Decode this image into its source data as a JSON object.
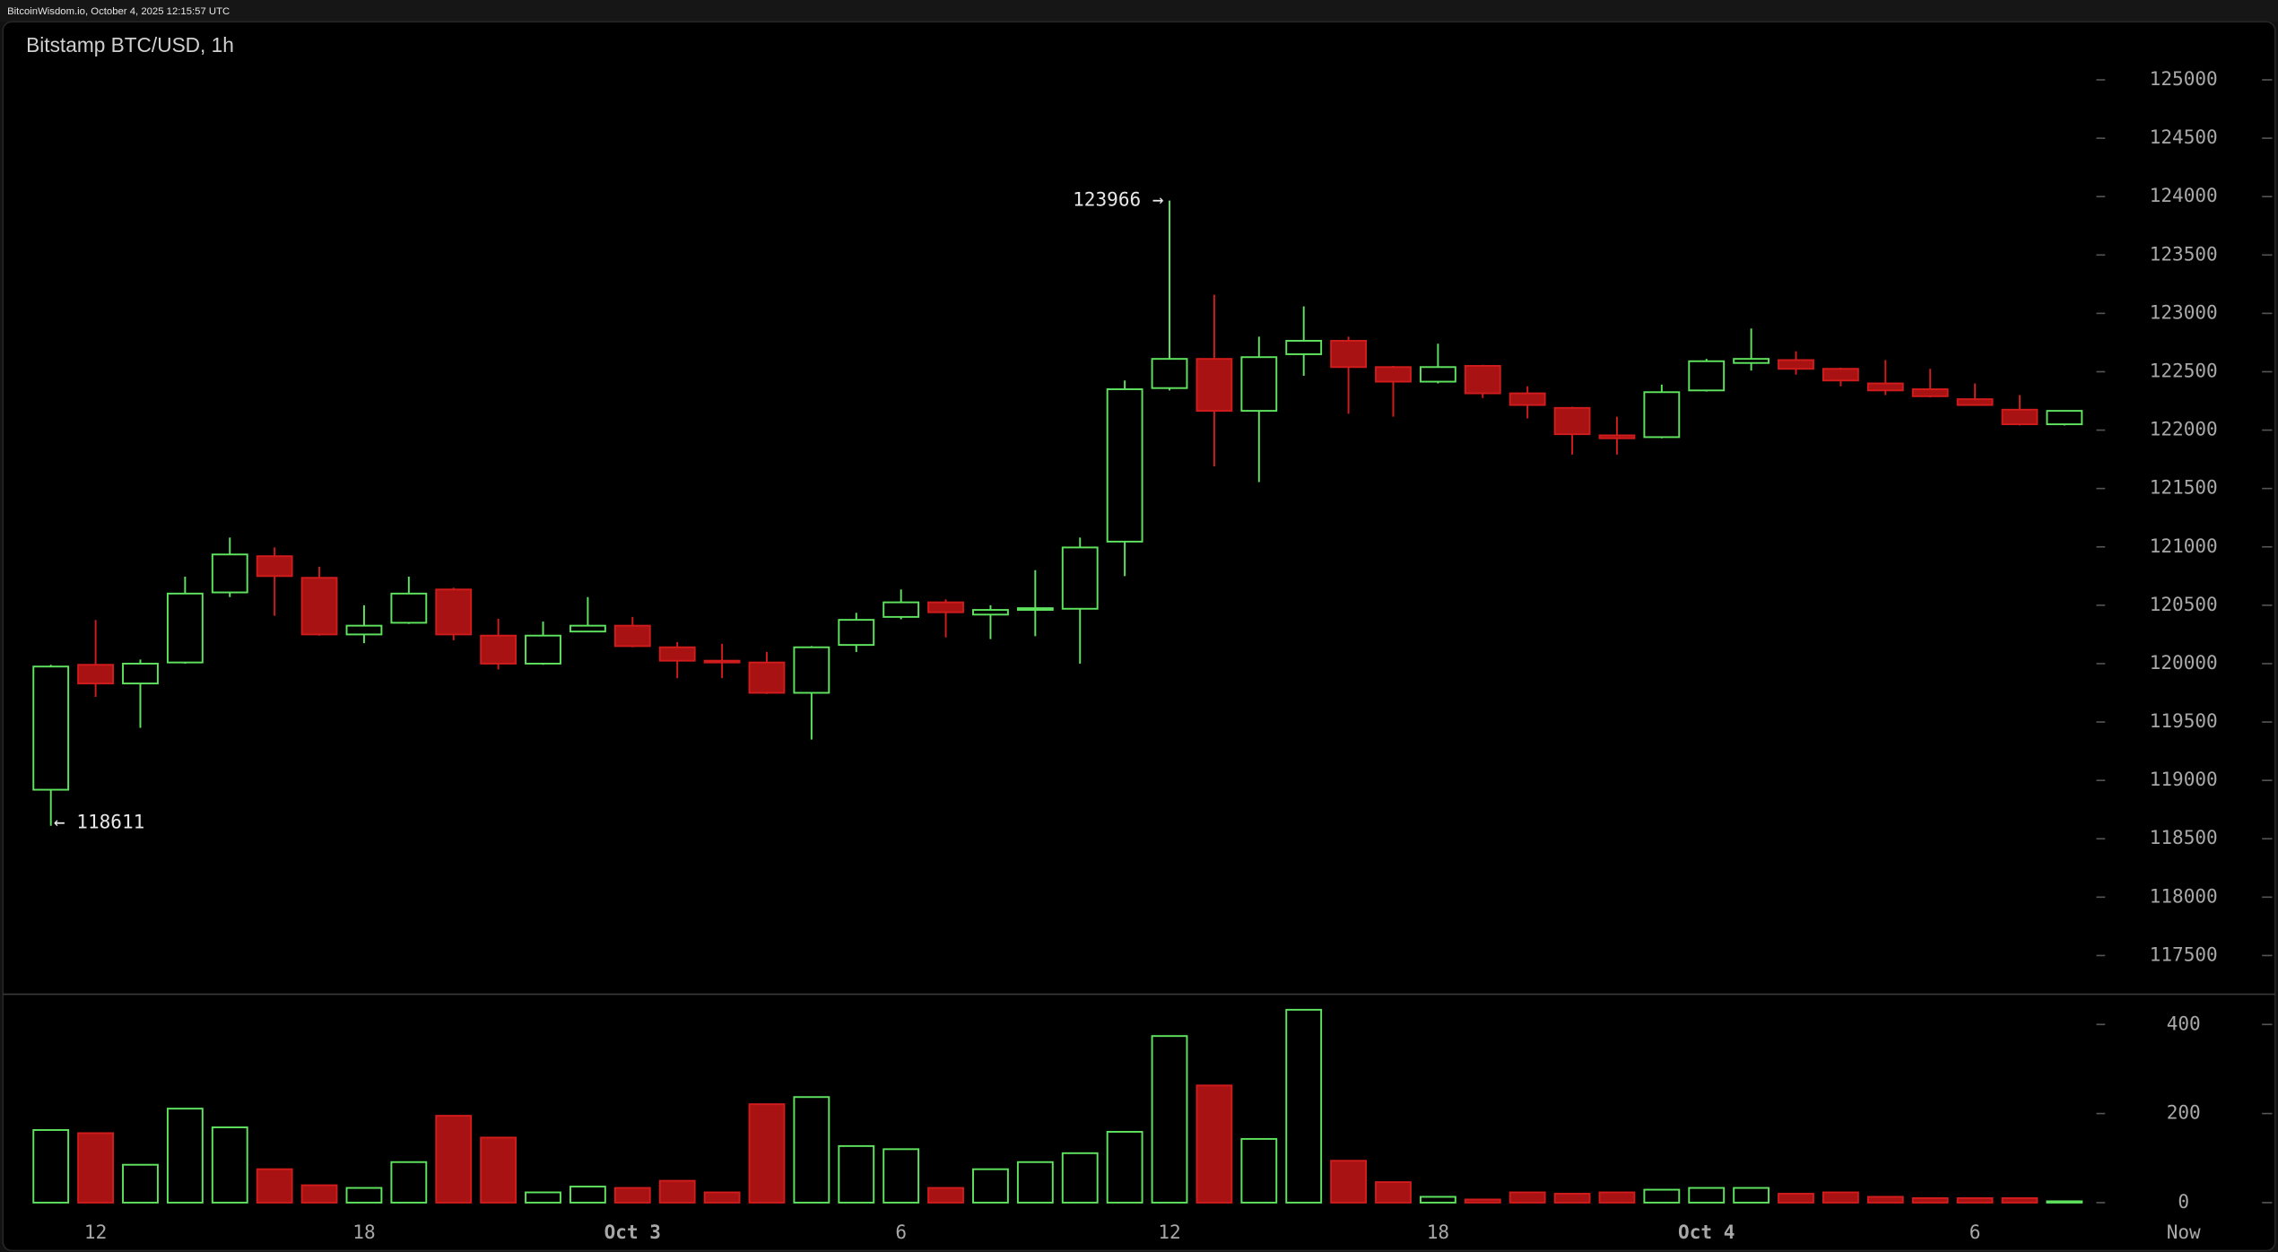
{
  "chart_data": {
    "type": "candlestick",
    "header": "BitcoinWisdom.io, October 4, 2025 12:15:57 UTC",
    "title": "Bitstamp BTC/USD, 1h",
    "categories": [
      null,
      "12",
      null,
      null,
      null,
      null,
      null,
      "18",
      null,
      null,
      null,
      null,
      null,
      "Oct 3",
      null,
      null,
      null,
      null,
      null,
      "6",
      null,
      null,
      null,
      null,
      null,
      "12",
      null,
      null,
      null,
      null,
      null,
      "18",
      null,
      null,
      null,
      null,
      null,
      "Oct 4",
      null,
      null,
      null,
      null,
      null,
      "6",
      null,
      null
    ],
    "now_label": "Now",
    "open": [
      118920,
      119990,
      119830,
      120010,
      120610,
      120920,
      120735,
      120250,
      120350,
      120635,
      120240,
      120000,
      120275,
      120325,
      120140,
      120025,
      120010,
      119750,
      120160,
      120400,
      120525,
      120420,
      120470,
      120470,
      121045,
      122360,
      122610,
      122165,
      122650,
      122765,
      122540,
      122415,
      122550,
      122315,
      122190,
      121955,
      121940,
      122340,
      122575,
      122600,
      122525,
      122400,
      122350,
      122265,
      122175,
      122050
    ],
    "high": [
      119990,
      120373,
      120035,
      120745,
      121080,
      120995,
      120830,
      120500,
      120745,
      120650,
      120385,
      120360,
      120570,
      120400,
      120185,
      120170,
      120100,
      120150,
      120435,
      120635,
      120550,
      120500,
      120800,
      121080,
      122425,
      123966,
      123160,
      122800,
      123060,
      122800,
      122550,
      122740,
      122560,
      122375,
      122200,
      122115,
      122390,
      122610,
      122870,
      122675,
      122535,
      122600,
      122525,
      122400,
      122300,
      122170
    ],
    "low": [
      118611,
      119715,
      119450,
      120000,
      120570,
      120410,
      120240,
      120175,
      120340,
      120200,
      119950,
      119990,
      120270,
      120140,
      119875,
      119875,
      119740,
      119350,
      120100,
      120380,
      120225,
      120210,
      120235,
      120000,
      120750,
      122340,
      121690,
      121555,
      122465,
      122140,
      122115,
      122400,
      122275,
      122100,
      121790,
      121790,
      121930,
      122330,
      122510,
      122475,
      122375,
      122300,
      122280,
      122210,
      122040,
      122040
    ],
    "close": [
      119975,
      119830,
      120000,
      120600,
      120935,
      120750,
      120250,
      120325,
      120600,
      120250,
      120000,
      120240,
      120325,
      120150,
      120025,
      120010,
      119750,
      120140,
      120375,
      120525,
      120440,
      120460,
      120475,
      120995,
      122350,
      122610,
      122165,
      122625,
      122765,
      122540,
      122415,
      122540,
      122315,
      122215,
      121965,
      121930,
      122325,
      122590,
      122610,
      122525,
      122425,
      122340,
      122290,
      122215,
      122050,
      122165
    ],
    "volume": [
      163,
      156,
      85,
      211,
      169,
      75,
      39,
      33,
      91,
      195,
      146,
      23,
      36,
      33,
      49,
      23,
      221,
      237,
      127,
      120,
      33,
      75,
      91,
      111,
      159,
      374,
      263,
      143,
      433,
      94,
      46,
      13,
      7,
      23,
      20,
      23,
      29,
      33,
      33,
      20,
      23,
      13,
      10,
      10,
      10,
      3
    ],
    "annotations": [
      {
        "text": "123966 →"
      },
      {
        "text": "← 118611"
      }
    ],
    "ylim": [
      117175,
      125435
    ],
    "yticks": [
      117500,
      118000,
      118500,
      119000,
      119500,
      120000,
      120500,
      121000,
      121500,
      122000,
      122500,
      123000,
      123500,
      124000,
      124500,
      125000
    ],
    "volume_ylim": [
      0,
      450
    ],
    "volume_yticks": [
      0,
      200,
      400
    ],
    "up_color": "#5fe35f",
    "down_color": "#a81212",
    "down_edge": "#d01c1c"
  }
}
